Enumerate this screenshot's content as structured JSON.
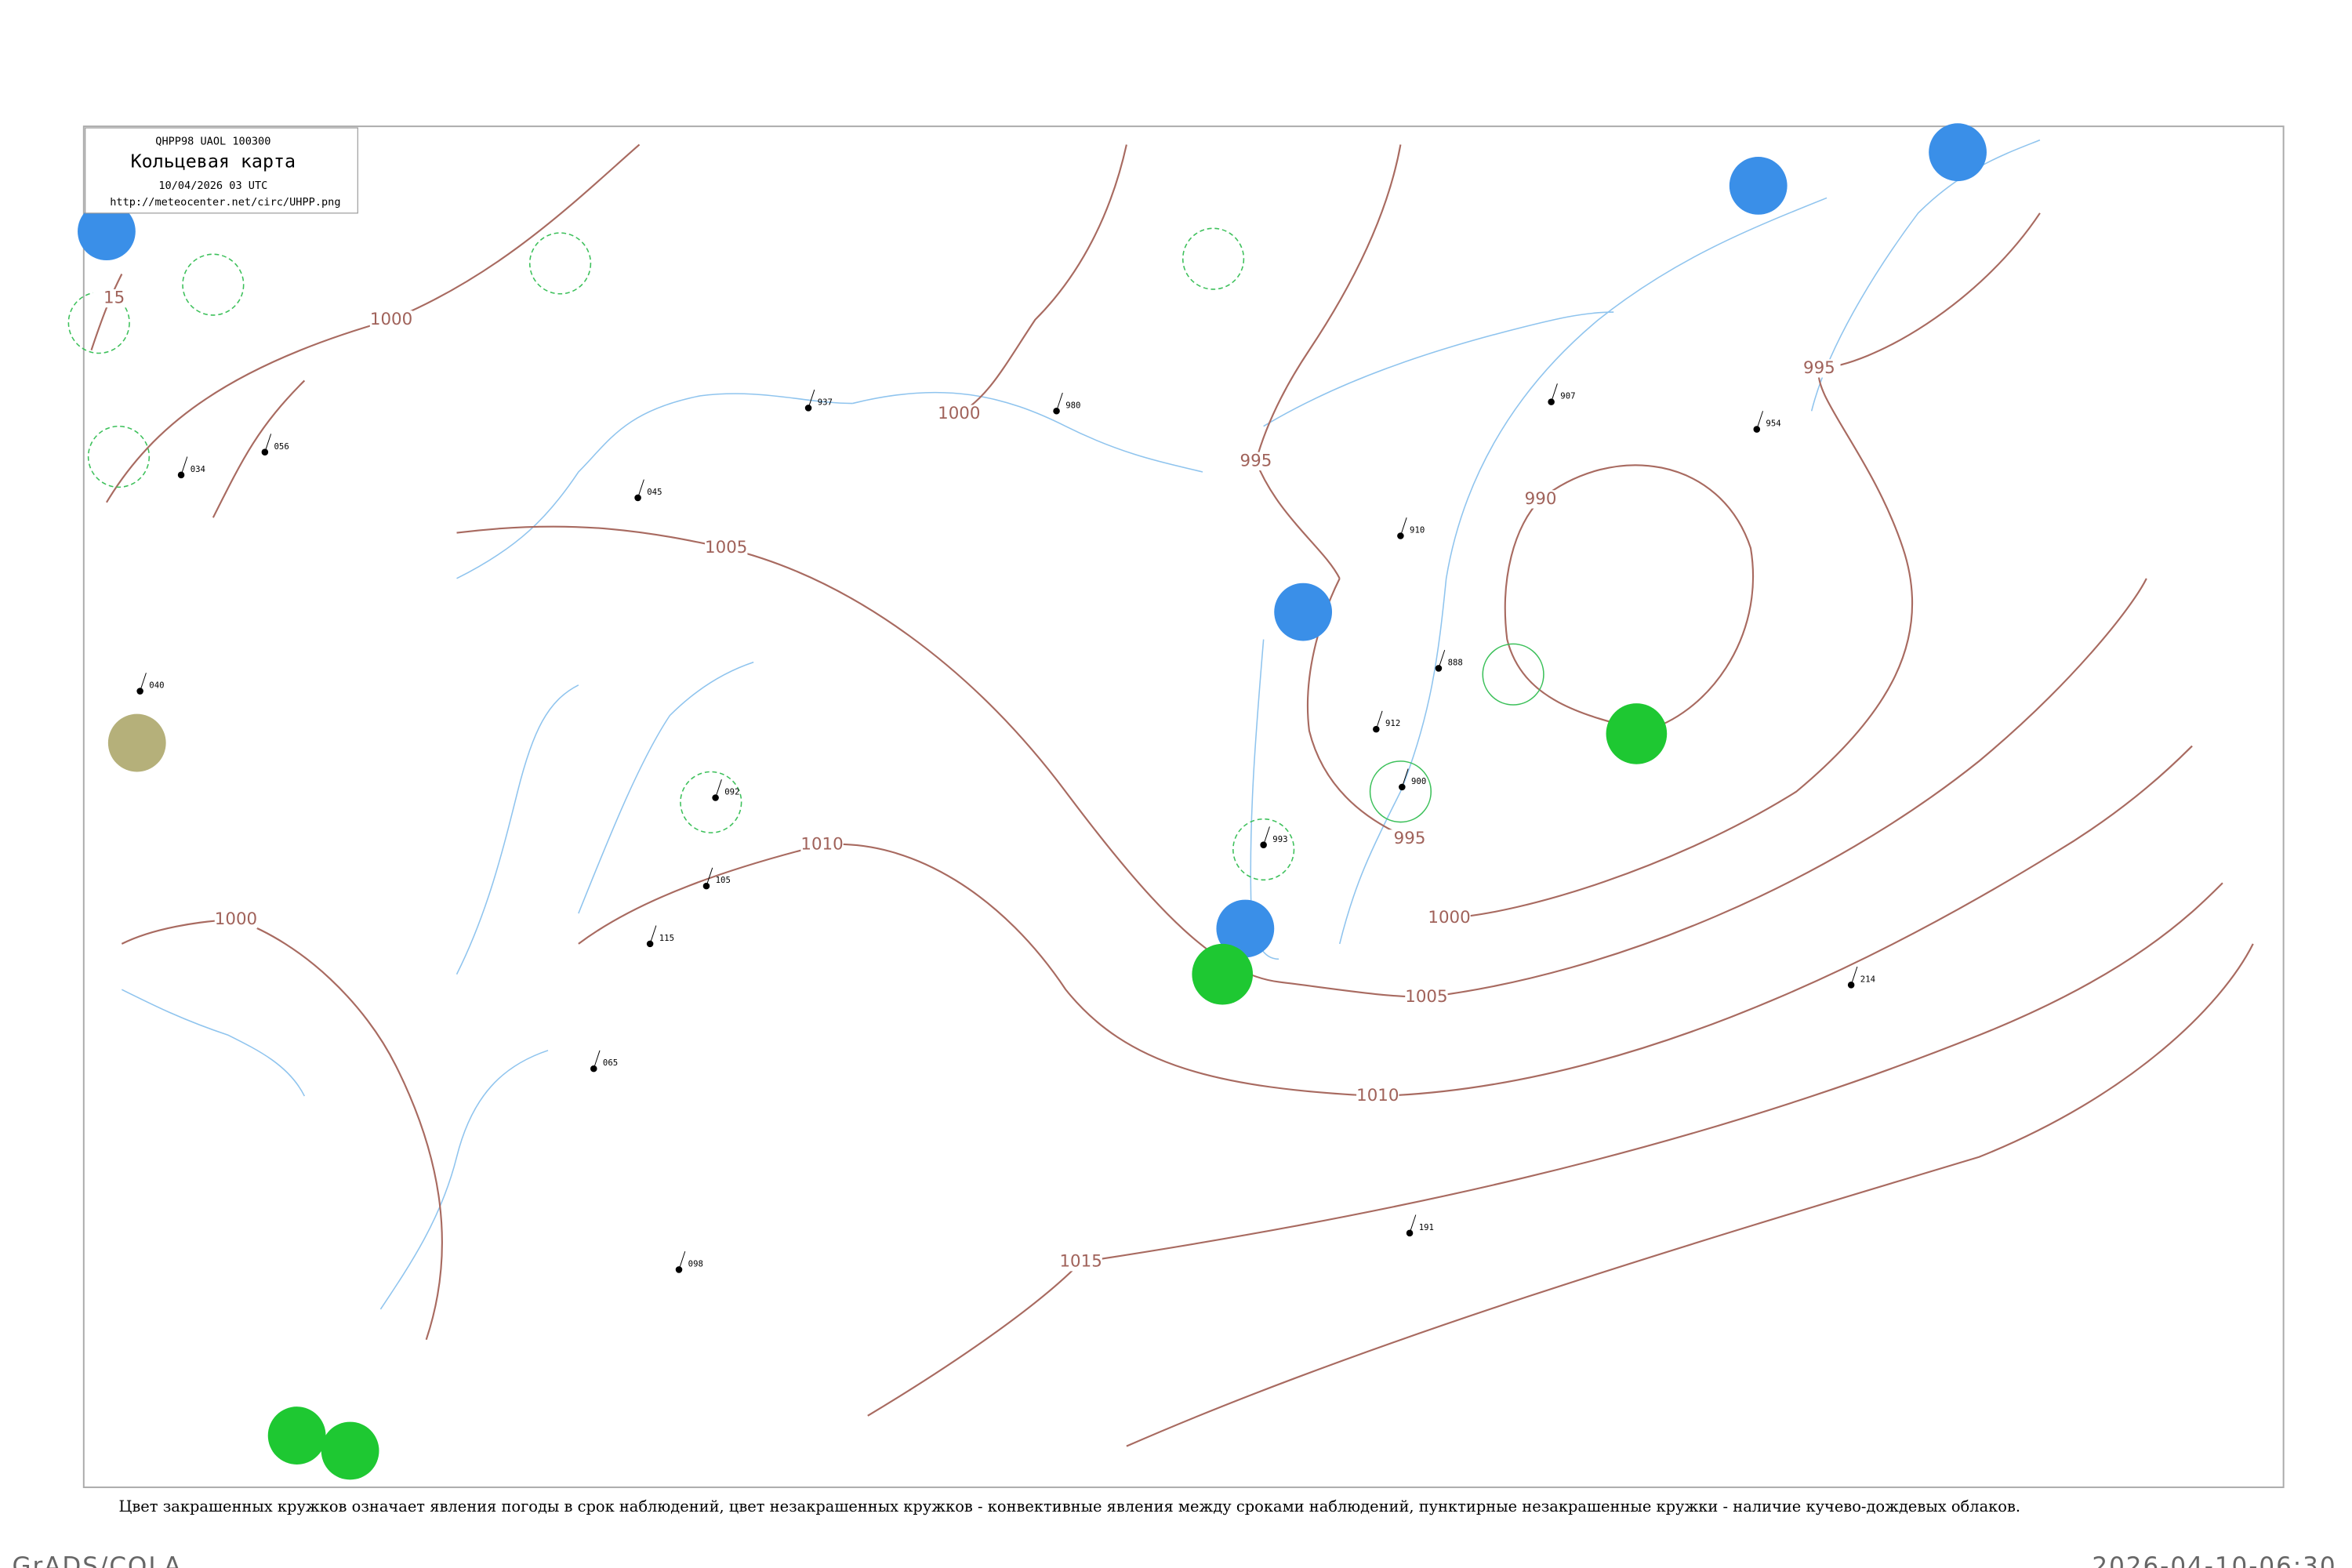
{
  "header": {
    "code": "QHPP98  UAOL  100300",
    "title": "Кольцевая карта",
    "date": "10/04/2026 03 UTC",
    "url": "http://meteocenter.net/circ/UHPP.png"
  },
  "isobars": [
    {
      "label": "15"
    },
    {
      "label": "1000"
    },
    {
      "label": "995"
    },
    {
      "label": "990"
    },
    {
      "label": "1005"
    },
    {
      "label": "1010"
    },
    {
      "label": "1000"
    },
    {
      "label": "995"
    },
    {
      "label": "995"
    },
    {
      "label": "1000"
    },
    {
      "label": "1005"
    },
    {
      "label": "1010"
    },
    {
      "label": "1015"
    },
    {
      "label": "1000"
    }
  ],
  "stations": [
    {
      "pressure": "034"
    },
    {
      "pressure": "056"
    },
    {
      "pressure": "045"
    },
    {
      "pressure": "092"
    },
    {
      "pressure": "040"
    },
    {
      "pressure": "937"
    },
    {
      "pressure": "980"
    },
    {
      "pressure": "910"
    },
    {
      "pressure": "888"
    },
    {
      "pressure": "912"
    },
    {
      "pressure": "900"
    },
    {
      "pressure": "993"
    },
    {
      "pressure": "954"
    },
    {
      "pressure": "907"
    },
    {
      "pressure": "214"
    },
    {
      "pressure": "191"
    },
    {
      "pressure": "098"
    },
    {
      "pressure": "065"
    },
    {
      "pressure": "105"
    },
    {
      "pressure": "115"
    }
  ],
  "caption": "Цвет закрашенных кружков означает явления погоды в срок наблюдений, цвет незакрашенных кружков - конвективные явления между сроками наблюдений, пунктирные незакрашенные кружки - наличие кучево-дождевых облаков.",
  "footer": {
    "left": "GrADS/COLA",
    "right": "2026-04-10-06:30"
  }
}
